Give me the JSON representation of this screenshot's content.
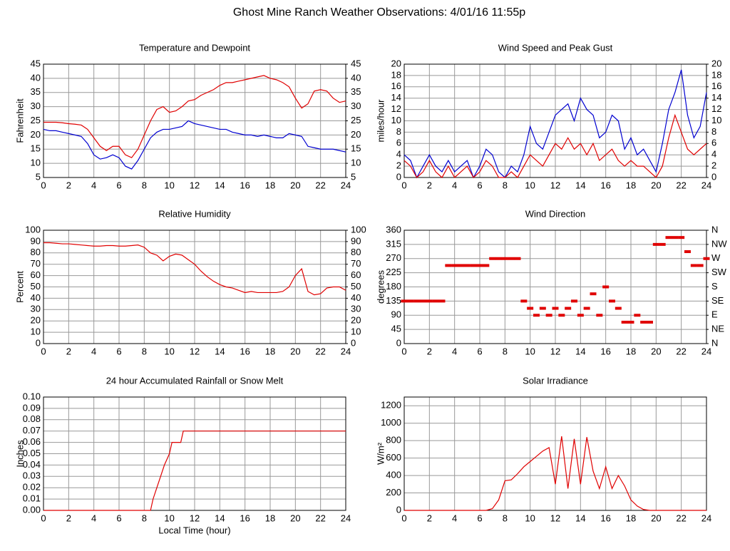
{
  "title": "Ghost Mine Ranch Weather Observations: 4/01/16 11:55p",
  "chart_data": [
    {
      "type": "line",
      "title": "Temperature and Dewpoint",
      "ylabel": "Fahrenheit",
      "grid": true,
      "x": [
        0,
        0.5,
        1,
        1.5,
        2,
        2.5,
        3,
        3.5,
        4,
        4.5,
        5,
        5.5,
        6,
        6.5,
        7,
        7.5,
        8,
        8.5,
        9,
        9.5,
        10,
        10.5,
        11,
        11.5,
        12,
        12.5,
        13,
        13.5,
        14,
        14.5,
        15,
        15.5,
        16,
        16.5,
        17,
        17.5,
        18,
        18.5,
        19,
        19.5,
        20,
        20.5,
        21,
        21.5,
        22,
        22.5,
        23,
        23.5,
        24
      ],
      "xlim": [
        0,
        24
      ],
      "xticks": [
        0,
        2,
        4,
        6,
        8,
        10,
        12,
        14,
        16,
        18,
        20,
        22,
        24
      ],
      "ylim": [
        5,
        45
      ],
      "yticks": [
        5,
        10,
        15,
        20,
        25,
        30,
        35,
        40,
        45
      ],
      "y2lim": [
        5,
        45
      ],
      "y2ticks": [
        5,
        10,
        15,
        20,
        25,
        30,
        35,
        40,
        45
      ],
      "series": [
        {
          "color": "#e00000",
          "values": [
            24.5,
            24.5,
            24.5,
            24.3,
            24,
            23.8,
            23.5,
            22,
            19,
            16,
            14.5,
            16,
            16,
            13,
            12,
            15,
            20,
            25,
            29,
            30,
            28,
            28.5,
            30,
            32,
            32.5,
            34,
            35,
            36,
            37.5,
            38.5,
            38.5,
            39,
            39.5,
            40,
            40.5,
            41,
            40,
            39.5,
            38.5,
            37,
            33,
            29.5,
            31,
            35.5,
            36,
            35.5,
            33,
            31.5,
            32
          ]
        },
        {
          "color": "#0000d0",
          "values": [
            22,
            21.5,
            21.5,
            21,
            20.5,
            20,
            19.5,
            17,
            13,
            11.5,
            12,
            13,
            12,
            9,
            8,
            11,
            15,
            19,
            21,
            22,
            22,
            22.5,
            23,
            25,
            24,
            23.5,
            23,
            22.5,
            22,
            22,
            21,
            20.5,
            20,
            20,
            19.5,
            20,
            19.5,
            19,
            19,
            20.5,
            20,
            19.5,
            16,
            15.5,
            15,
            15,
            15,
            14.5,
            14
          ]
        }
      ]
    },
    {
      "type": "line",
      "title": "Wind Speed and Peak Gust",
      "ylabel": "miles/hour",
      "grid": true,
      "x": [
        0,
        0.5,
        1,
        1.5,
        2,
        2.5,
        3,
        3.5,
        4,
        4.5,
        5,
        5.5,
        6,
        6.5,
        7,
        7.5,
        8,
        8.5,
        9,
        9.5,
        10,
        10.5,
        11,
        11.5,
        12,
        12.5,
        13,
        13.5,
        14,
        14.5,
        15,
        15.5,
        16,
        16.5,
        17,
        17.5,
        18,
        18.5,
        19,
        19.5,
        20,
        20.5,
        21,
        21.5,
        22,
        22.5,
        23,
        23.5,
        24
      ],
      "xlim": [
        0,
        24
      ],
      "xticks": [
        0,
        2,
        4,
        6,
        8,
        10,
        12,
        14,
        16,
        18,
        20,
        22,
        24
      ],
      "ylim": [
        0,
        20
      ],
      "yticks": [
        0,
        2,
        4,
        6,
        8,
        10,
        12,
        14,
        16,
        18,
        20
      ],
      "y2lim": [
        0,
        20
      ],
      "y2ticks": [
        0,
        2,
        4,
        6,
        8,
        10,
        12,
        14,
        16,
        18,
        20
      ],
      "series": [
        {
          "color": "#0000d0",
          "values": [
            4,
            3,
            0,
            2,
            4,
            2,
            1,
            3,
            1,
            2,
            3,
            0,
            2,
            5,
            4,
            1,
            0,
            2,
            1,
            4,
            9,
            6,
            5,
            8,
            11,
            12,
            13,
            10,
            14,
            12,
            11,
            7,
            8,
            11,
            10,
            5,
            7,
            4,
            5,
            3,
            1,
            6,
            12,
            15,
            19,
            11,
            7,
            9,
            15
          ]
        },
        {
          "color": "#e00000",
          "values": [
            3,
            2,
            0,
            1,
            3,
            1,
            0,
            2,
            0,
            1,
            2,
            0,
            1,
            3,
            2,
            0,
            0,
            1,
            0,
            2,
            4,
            3,
            2,
            4,
            6,
            5,
            7,
            5,
            6,
            4,
            6,
            3,
            4,
            5,
            3,
            2,
            3,
            2,
            2,
            1,
            0,
            2,
            7,
            11,
            8,
            5,
            4,
            5,
            6
          ]
        }
      ]
    },
    {
      "type": "line",
      "title": "Relative Humidity",
      "ylabel": "Percent",
      "grid": true,
      "x": [
        0,
        0.5,
        1,
        1.5,
        2,
        2.5,
        3,
        3.5,
        4,
        4.5,
        5,
        5.5,
        6,
        6.5,
        7,
        7.5,
        8,
        8.5,
        9,
        9.5,
        10,
        10.5,
        11,
        11.5,
        12,
        12.5,
        13,
        13.5,
        14,
        14.5,
        15,
        15.5,
        16,
        16.5,
        17,
        17.5,
        18,
        18.5,
        19,
        19.5,
        20,
        20.5,
        21,
        21.5,
        22,
        22.5,
        23,
        23.5,
        24
      ],
      "xlim": [
        0,
        24
      ],
      "xticks": [
        0,
        2,
        4,
        6,
        8,
        10,
        12,
        14,
        16,
        18,
        20,
        22,
        24
      ],
      "ylim": [
        0,
        100
      ],
      "yticks": [
        0,
        10,
        20,
        30,
        40,
        50,
        60,
        70,
        80,
        90,
        100
      ],
      "y2lim": [
        0,
        100
      ],
      "y2ticks": [
        0,
        10,
        20,
        30,
        40,
        50,
        60,
        70,
        80,
        90,
        100
      ],
      "series": [
        {
          "color": "#e00000",
          "values": [
            89,
            89,
            88.5,
            88,
            88,
            87.5,
            87,
            86.5,
            86,
            86,
            86.5,
            86.5,
            86,
            86,
            86.5,
            87,
            85,
            80,
            78,
            73,
            77,
            79,
            78,
            74,
            70,
            64,
            59,
            55,
            52,
            50,
            49,
            47,
            45,
            46,
            45,
            45,
            45,
            45,
            46,
            50,
            60,
            66,
            46,
            43,
            44,
            49,
            50,
            50,
            47
          ]
        }
      ]
    },
    {
      "type": "scatter",
      "title": "Wind Direction",
      "ylabel": "degrees",
      "grid": true,
      "x": [
        0,
        0.5,
        1,
        1.5,
        2,
        2.5,
        3,
        3.5,
        4,
        4.5,
        5,
        5.5,
        6,
        6.5,
        7,
        7.5,
        8,
        8.5,
        9,
        9.5,
        10,
        10.5,
        11,
        11.5,
        12,
        12.5,
        13,
        13.5,
        14,
        14.5,
        15,
        15.5,
        16,
        16.5,
        17,
        17.5,
        18,
        18.5,
        19,
        19.5,
        20,
        20.5,
        21,
        21.5,
        22,
        22.5,
        23,
        23.5,
        24
      ],
      "xlim": [
        0,
        24
      ],
      "xticks": [
        0,
        2,
        4,
        6,
        8,
        10,
        12,
        14,
        16,
        18,
        20,
        22,
        24
      ],
      "ylim": [
        0,
        360
      ],
      "yticks": [
        0,
        45,
        90,
        135,
        180,
        225,
        270,
        315,
        360
      ],
      "y2lim": [
        0,
        360
      ],
      "y2ticks": [
        {
          "value": 0,
          "label": "N"
        },
        {
          "value": 45,
          "label": "NE"
        },
        {
          "value": 90,
          "label": "E"
        },
        {
          "value": 135,
          "label": "SE"
        },
        {
          "value": 180,
          "label": "S"
        },
        {
          "value": 225,
          "label": "SW"
        },
        {
          "value": 270,
          "label": "W"
        },
        {
          "value": 315,
          "label": "NW"
        },
        {
          "value": 360,
          "label": "N"
        }
      ],
      "series": [
        {
          "color": "#e00000",
          "values": [
            135,
            135,
            135,
            135,
            135,
            135,
            135,
            248,
            248,
            248,
            248,
            248,
            248,
            248,
            270,
            270,
            270,
            270,
            270,
            135,
            112,
            90,
            112,
            90,
            112,
            90,
            112,
            135,
            90,
            112,
            158,
            90,
            180,
            135,
            112,
            68,
            68,
            90,
            68,
            68,
            315,
            315,
            337,
            337,
            337,
            292,
            248,
            248,
            270
          ]
        }
      ]
    },
    {
      "type": "line",
      "title": "24 hour Accumulated Rainfall or Snow Melt",
      "ylabel": "Inches",
      "xlabel": "Local Time (hour)",
      "grid": true,
      "x": [
        0,
        8.5,
        8.7,
        9,
        9.3,
        9.6,
        10,
        10.2,
        10.9,
        11.1,
        24
      ],
      "xlim": [
        0,
        24
      ],
      "xticks": [
        0,
        2,
        4,
        6,
        8,
        10,
        12,
        14,
        16,
        18,
        20,
        22,
        24
      ],
      "ylim": [
        0,
        0.1
      ],
      "yticks": [
        {
          "value": 0,
          "label": "0.00"
        },
        {
          "value": 0.01,
          "label": "0.01"
        },
        {
          "value": 0.02,
          "label": "0.02"
        },
        {
          "value": 0.03,
          "label": "0.03"
        },
        {
          "value": 0.04,
          "label": "0.04"
        },
        {
          "value": 0.05,
          "label": "0.05"
        },
        {
          "value": 0.06,
          "label": "0.06"
        },
        {
          "value": 0.07,
          "label": "0.07"
        },
        {
          "value": 0.08,
          "label": "0.08"
        },
        {
          "value": 0.09,
          "label": "0.09"
        },
        {
          "value": 0.1,
          "label": "0.10"
        }
      ],
      "series": [
        {
          "color": "#e00000",
          "values": [
            0,
            0,
            0.01,
            0.02,
            0.03,
            0.04,
            0.05,
            0.06,
            0.06,
            0.07,
            0.07
          ]
        }
      ]
    },
    {
      "type": "line",
      "title": "Solar Irradiance",
      "ylabel": "W/m²",
      "grid": true,
      "x": [
        0,
        0.5,
        1,
        1.5,
        2,
        2.5,
        3,
        3.5,
        4,
        4.5,
        5,
        5.5,
        6,
        6.5,
        7,
        7.5,
        8,
        8.5,
        9,
        9.5,
        10,
        10.5,
        11,
        11.5,
        12,
        12.5,
        13,
        13.5,
        14,
        14.5,
        15,
        15.5,
        16,
        16.5,
        17,
        17.5,
        18,
        18.5,
        19,
        19.5,
        20,
        20.5,
        21,
        21.5,
        22,
        22.5,
        23,
        23.5,
        24
      ],
      "xlim": [
        0,
        24
      ],
      "xticks": [
        0,
        2,
        4,
        6,
        8,
        10,
        12,
        14,
        16,
        18,
        20,
        22,
        24
      ],
      "ylim": [
        0,
        1300
      ],
      "yticks": [
        0,
        200,
        400,
        600,
        800,
        1000,
        1200
      ],
      "series": [
        {
          "color": "#e00000",
          "values": [
            0,
            0,
            0,
            0,
            0,
            0,
            0,
            0,
            0,
            0,
            0,
            0,
            0,
            0,
            20,
            120,
            340,
            350,
            420,
            500,
            560,
            620,
            680,
            720,
            300,
            850,
            250,
            820,
            300,
            840,
            450,
            250,
            500,
            250,
            400,
            280,
            120,
            50,
            10,
            0,
            0,
            0,
            0,
            0,
            0,
            0,
            0,
            0,
            0
          ]
        }
      ]
    }
  ]
}
